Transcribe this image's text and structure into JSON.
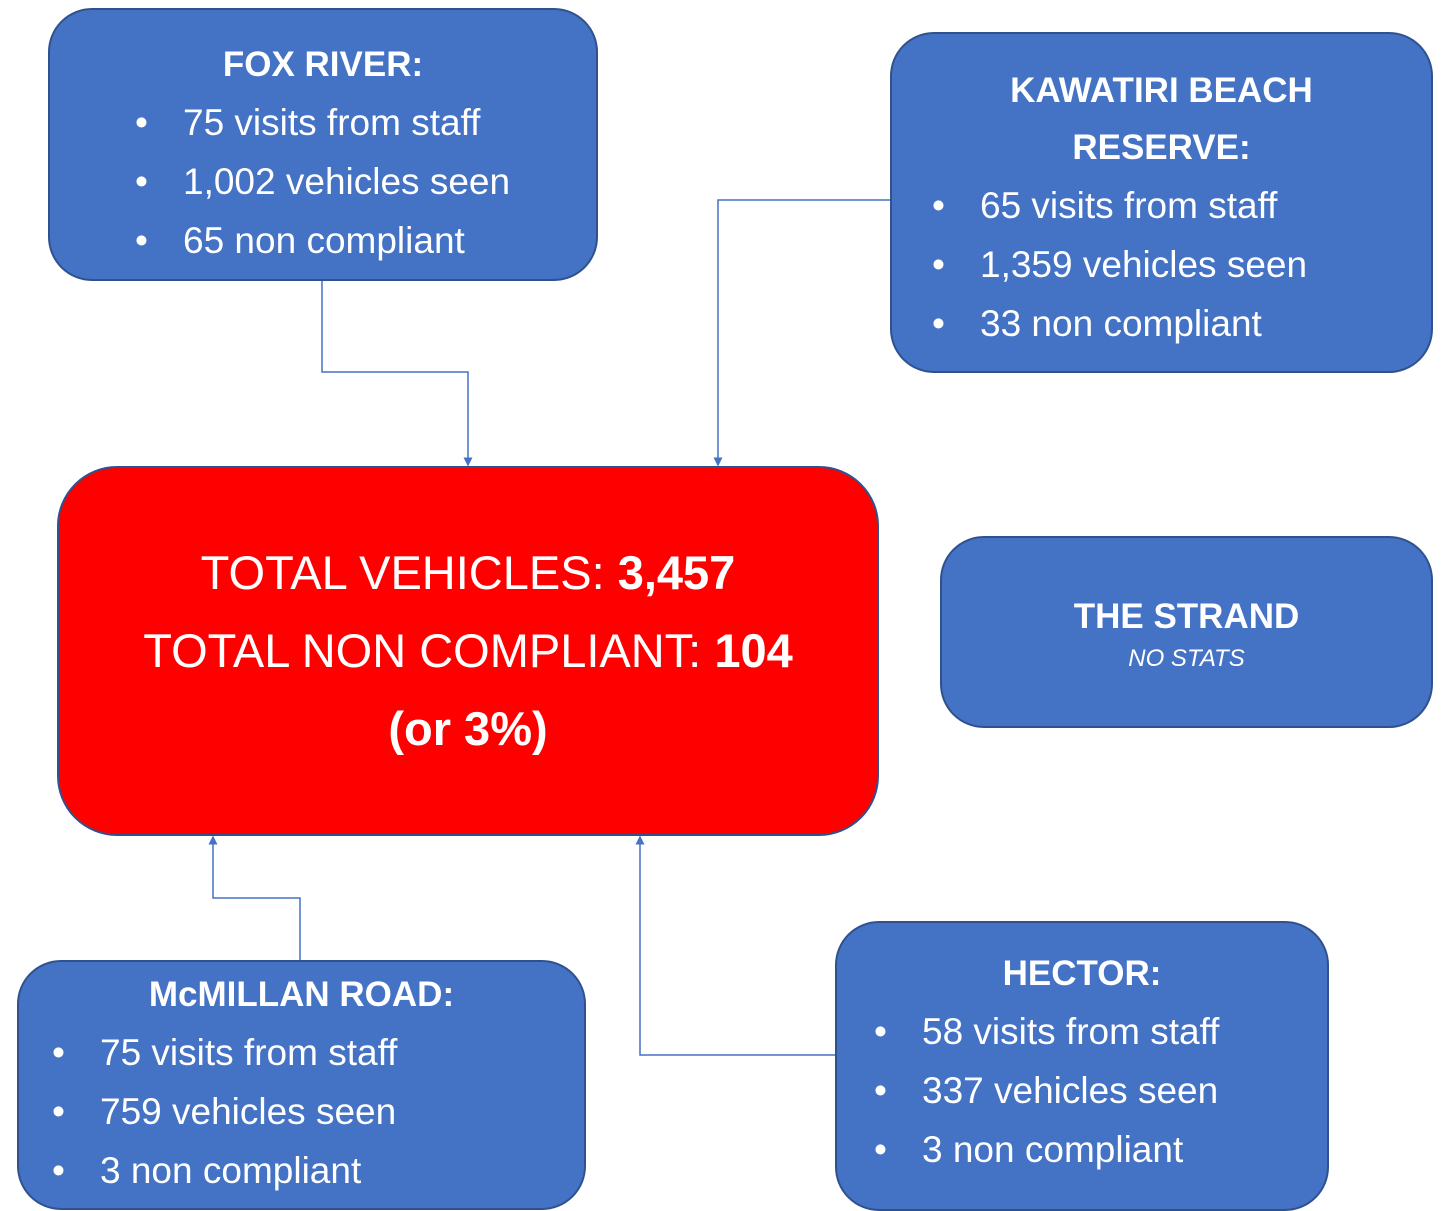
{
  "nodes": [
    {
      "title": "FOX RIVER:",
      "items": [
        "75 visits from staff",
        "1,002 vehicles seen",
        "65 non compliant"
      ]
    },
    {
      "title": "KAWATIRI BEACH RESERVE:",
      "items": [
        "65 visits from staff",
        "1,359 vehicles seen",
        "33 non compliant"
      ]
    },
    {
      "title": "THE STRAND",
      "subtitle": "NO STATS"
    },
    {
      "title": "McMILLAN ROAD:",
      "items": [
        "75 visits from staff",
        "759 vehicles seen",
        "3 non compliant"
      ]
    },
    {
      "title": "HECTOR:",
      "items": [
        "58 visits from staff",
        "337 vehicles seen",
        "3 non compliant"
      ]
    }
  ],
  "total": {
    "lines": [
      {
        "label": "TOTAL VEHICLES:",
        "value": "3,457"
      },
      {
        "label": "TOTAL NON COMPLIANT:",
        "value": "104"
      },
      {
        "value": "(or 3%)"
      }
    ]
  }
}
